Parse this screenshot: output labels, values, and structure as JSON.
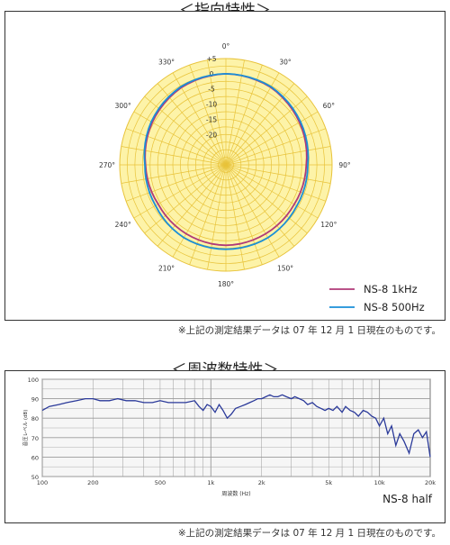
{
  "sections": {
    "polar_title": "＜指向特性＞",
    "freq_title": "＜周波数特性＞",
    "note_polar": "※上記の測定結果データは 07 年 12 月 1 日現在のものです。",
    "note_freq": "※上記の測定結果データは 07 年 12 月 1 日現在のものです。",
    "freq_series_name": "NS-8 half"
  },
  "colors": {
    "polar_fill": "#fdf3a8",
    "polar_grid": "#e8c33a",
    "series_1k": "#b03a78",
    "series_500": "#1a8fd8",
    "freq_line": "#2b3a9a",
    "freq_bg": "#f6f6f6",
    "freq_grid": "#9a9a9a"
  },
  "chart_data": [
    {
      "type": "polar",
      "angle_labels": [
        "0°",
        "30°",
        "60°",
        "90°",
        "120°",
        "150°",
        "180°",
        "210°",
        "240°",
        "270°",
        "300°",
        "330°"
      ],
      "angles": [
        0,
        30,
        60,
        90,
        120,
        150,
        180,
        210,
        240,
        270,
        300,
        330
      ],
      "radial_labels": [
        "+5",
        "0",
        "-5",
        "-10",
        "-15",
        "-20"
      ],
      "radial_values": [
        5,
        0,
        -5,
        -10,
        -15,
        -20
      ],
      "rlim": [
        -30,
        5
      ],
      "legend": "bottom-right",
      "series": [
        {
          "name": "NS-8 1kHz",
          "angles": [
            0,
            30,
            60,
            90,
            120,
            150,
            180,
            210,
            240,
            270,
            300,
            330
          ],
          "values": [
            0,
            -0.5,
            -2.0,
            -3.5,
            -4.0,
            -3.8,
            -3.5,
            -3.8,
            -4.2,
            -3.5,
            -2.0,
            -0.6
          ]
        },
        {
          "name": "NS-8 500Hz",
          "angles": [
            0,
            30,
            60,
            90,
            120,
            150,
            180,
            210,
            240,
            270,
            300,
            330
          ],
          "values": [
            0,
            -0.3,
            -1.6,
            -3.0,
            -3.0,
            -2.3,
            -2.2,
            -2.3,
            -3.2,
            -3.3,
            -1.6,
            -0.3
          ]
        }
      ]
    },
    {
      "type": "line",
      "xscale": "log",
      "xlabel": "周波数 (Hz)",
      "ylabel": "音圧レベル (dB)",
      "xlim": [
        100,
        20000
      ],
      "ylim": [
        50,
        100
      ],
      "xtick_labels": [
        "100",
        "200",
        "500",
        "1k",
        "2k",
        "5k",
        "10k",
        "20k"
      ],
      "xtick_values": [
        100,
        200,
        500,
        1000,
        2000,
        5000,
        10000,
        20000
      ],
      "ytick_labels": [
        "100",
        "90",
        "80",
        "70",
        "60",
        "50"
      ],
      "ytick_values": [
        100,
        90,
        80,
        70,
        60,
        50
      ],
      "grid": true,
      "series": [
        {
          "name": "NS-8 half",
          "x": [
            100,
            110,
            125,
            140,
            160,
            180,
            200,
            220,
            250,
            280,
            315,
            355,
            400,
            450,
            500,
            560,
            630,
            710,
            800,
            850,
            900,
            950,
            1000,
            1060,
            1120,
            1180,
            1250,
            1320,
            1400,
            1500,
            1600,
            1700,
            1800,
            1900,
            2000,
            2120,
            2240,
            2360,
            2500,
            2650,
            2800,
            3000,
            3150,
            3350,
            3550,
            3750,
            4000,
            4250,
            4500,
            4750,
            5000,
            5300,
            5600,
            6000,
            6300,
            6700,
            7100,
            7500,
            8000,
            8500,
            9000,
            9500,
            10000,
            10600,
            11200,
            11800,
            12500,
            13200,
            14000,
            15000,
            16000,
            17000,
            18000,
            19000,
            20000
          ],
          "y": [
            84,
            86,
            87,
            88,
            89,
            90,
            90,
            89,
            89,
            90,
            89,
            89,
            88,
            88,
            89,
            88,
            88,
            88,
            89,
            86,
            84,
            87,
            86,
            83,
            87,
            84,
            80,
            82,
            85,
            86,
            87,
            88,
            89,
            90,
            90,
            91,
            92,
            91,
            91,
            92,
            91,
            90,
            91,
            90,
            89,
            87,
            88,
            86,
            85,
            84,
            85,
            84,
            86,
            83,
            86,
            84,
            83,
            81,
            84,
            83,
            81,
            80,
            76,
            80,
            72,
            76,
            66,
            72,
            68,
            62,
            72,
            74,
            70,
            73,
            60
          ]
        }
      ]
    }
  ]
}
